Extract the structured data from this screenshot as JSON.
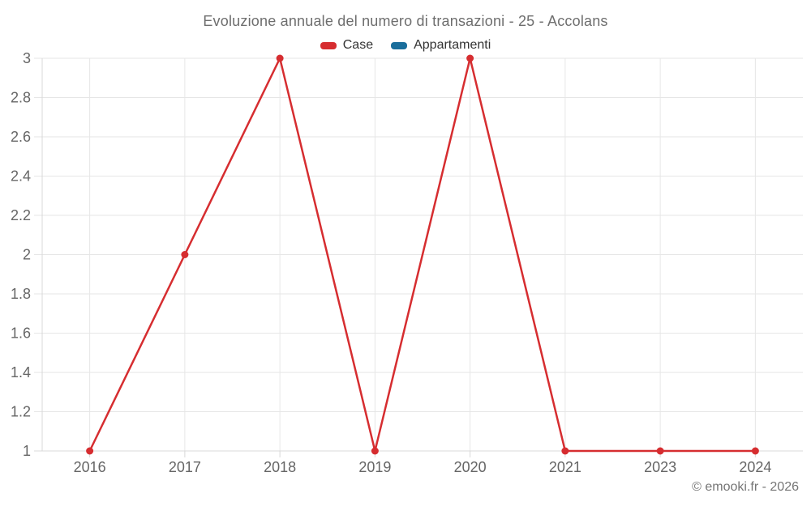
{
  "page": {
    "title": "Evoluzione annuale del numero di transazioni - 25 - Accolans",
    "watermark": "© emooki.fr - 2026"
  },
  "colors": {
    "case_red": "#d62d30",
    "appartamenti_blue": "#1a6e9c",
    "gridline": "#e6e6e6",
    "axis_line": "#d8d8d8",
    "axis_label": "#666666",
    "title_text": "#6e6e6e",
    "legend_text": "#333333",
    "watermark_text": "#757575"
  },
  "legend": {
    "items": [
      {
        "label": "Case",
        "color": "#d62d30"
      },
      {
        "label": "Appartamenti",
        "color": "#1a6e9c"
      }
    ]
  },
  "chart_data": {
    "type": "line",
    "title": "Evoluzione annuale del numero di transazioni - 25 - Accolans",
    "categories": [
      "2016",
      "2017",
      "2018",
      "2019",
      "2020",
      "2021",
      "2023",
      "2024"
    ],
    "series": [
      {
        "name": "Case",
        "color": "#d62d30",
        "values": [
          1,
          2,
          3,
          1,
          3,
          1,
          1,
          1
        ]
      },
      {
        "name": "Appartamenti",
        "color": "#1a6e9c",
        "values": [
          null,
          null,
          null,
          null,
          null,
          null,
          null,
          null
        ]
      }
    ],
    "xlabel": "",
    "ylabel": "",
    "ylim": [
      1,
      3
    ],
    "ytick_step": 0.2,
    "grid": true,
    "legend_position": "top",
    "marker_radius": 4.5,
    "line_width": 2.5
  }
}
